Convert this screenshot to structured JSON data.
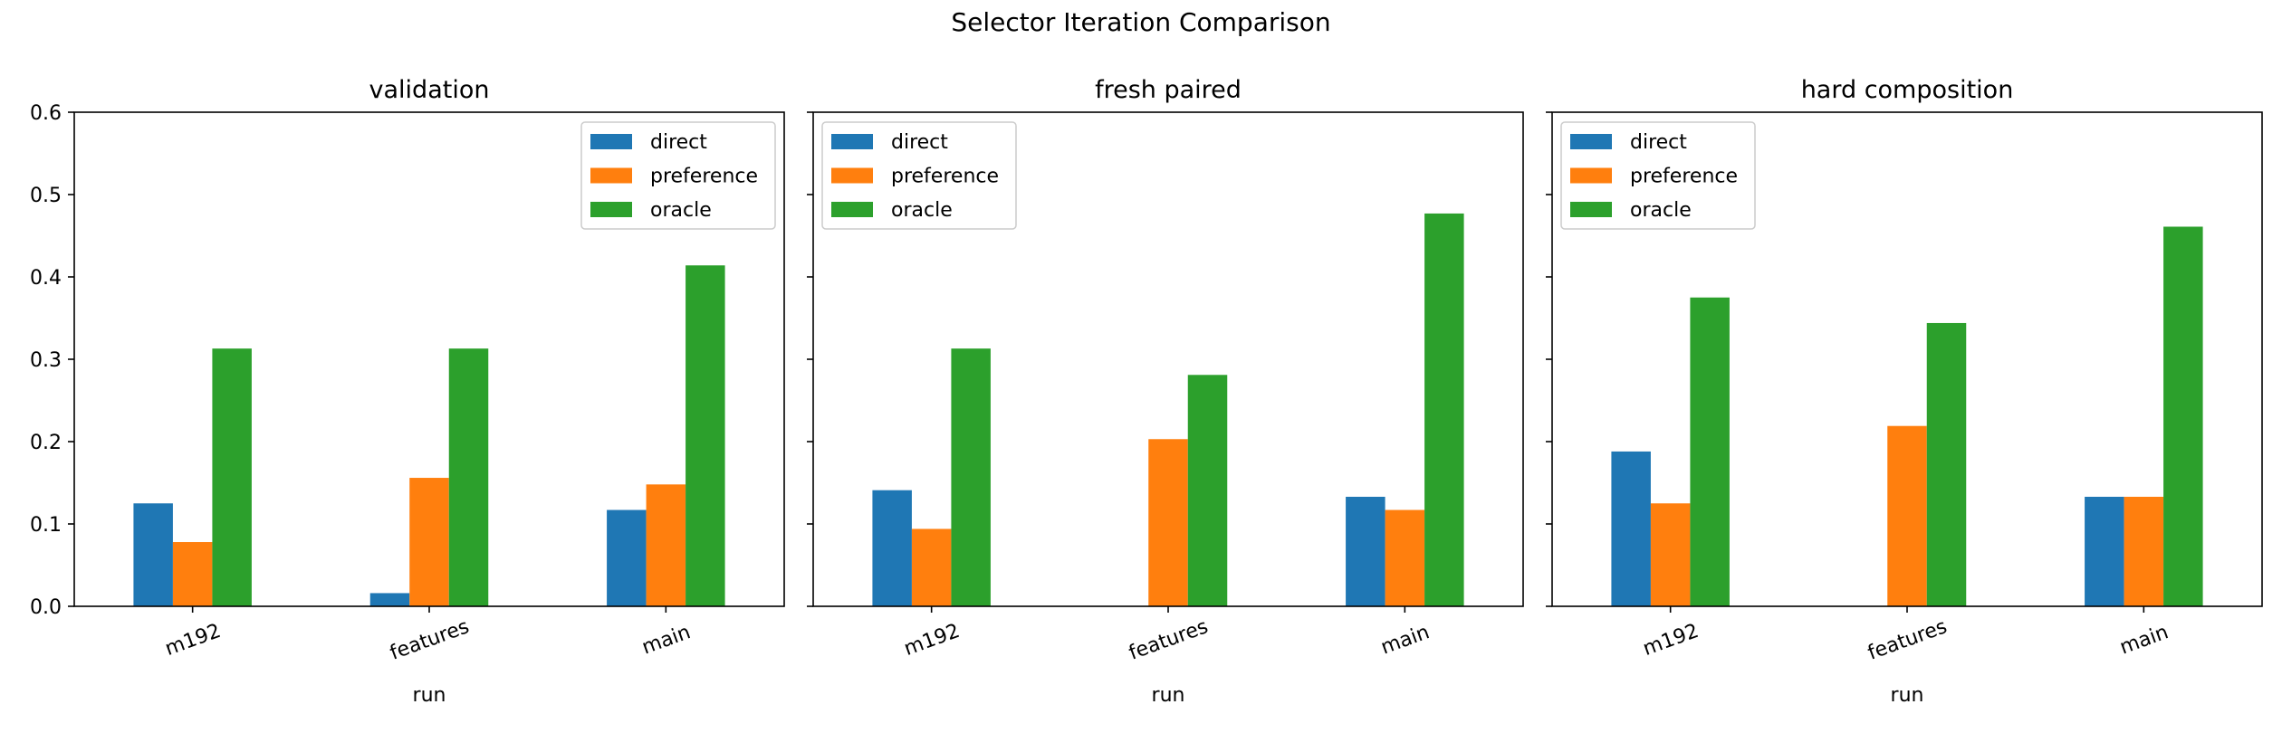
{
  "figure": {
    "title": "Selector Iteration Comparison"
  },
  "chart_data": [
    {
      "type": "bar",
      "title": "validation",
      "xlabel": "run",
      "ylabel": "",
      "categories": [
        "m192",
        "features",
        "main"
      ],
      "ylim": [
        0,
        0.6
      ],
      "yticks": [
        "0.0",
        "0.1",
        "0.2",
        "0.3",
        "0.4",
        "0.5",
        "0.6"
      ],
      "grid": false,
      "legend_position": "upper right",
      "series": [
        {
          "name": "direct",
          "color": "#1f77b4",
          "values": [
            0.125,
            0.016,
            0.117
          ]
        },
        {
          "name": "preference",
          "color": "#ff7f0e",
          "values": [
            0.078,
            0.156,
            0.148
          ]
        },
        {
          "name": "oracle",
          "color": "#2ca02c",
          "values": [
            0.313,
            0.313,
            0.414
          ]
        }
      ]
    },
    {
      "type": "bar",
      "title": "fresh paired",
      "xlabel": "run",
      "ylabel": "",
      "categories": [
        "m192",
        "features",
        "main"
      ],
      "ylim": [
        0,
        0.6
      ],
      "grid": false,
      "legend_position": "upper left",
      "series": [
        {
          "name": "direct",
          "color": "#1f77b4",
          "values": [
            0.141,
            0.0,
            0.133
          ]
        },
        {
          "name": "preference",
          "color": "#ff7f0e",
          "values": [
            0.094,
            0.203,
            0.117
          ]
        },
        {
          "name": "oracle",
          "color": "#2ca02c",
          "values": [
            0.313,
            0.281,
            0.477
          ]
        }
      ]
    },
    {
      "type": "bar",
      "title": "hard composition",
      "xlabel": "run",
      "ylabel": "",
      "categories": [
        "m192",
        "features",
        "main"
      ],
      "ylim": [
        0,
        0.6
      ],
      "grid": false,
      "legend_position": "upper left",
      "series": [
        {
          "name": "direct",
          "color": "#1f77b4",
          "values": [
            0.188,
            0.0,
            0.133
          ]
        },
        {
          "name": "preference",
          "color": "#ff7f0e",
          "values": [
            0.125,
            0.219,
            0.133
          ]
        },
        {
          "name": "oracle",
          "color": "#2ca02c",
          "values": [
            0.375,
            0.344,
            0.461
          ]
        }
      ]
    }
  ]
}
